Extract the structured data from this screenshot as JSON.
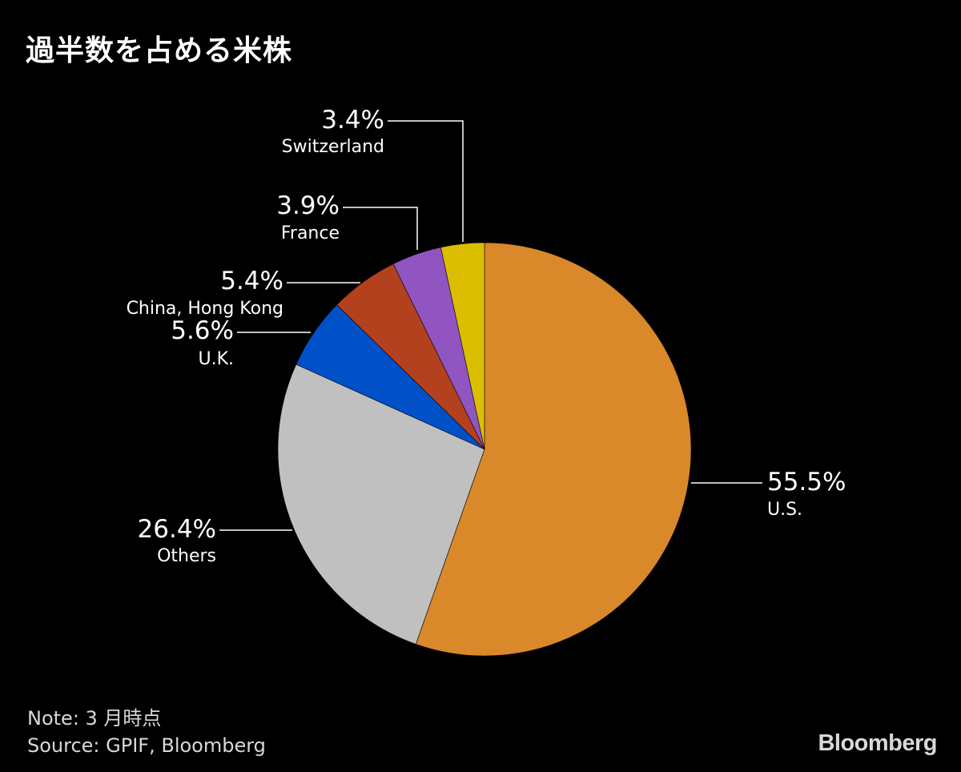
{
  "title": "過半数を占める米株",
  "chart_data": {
    "type": "pie",
    "title": "過半数を占める米株",
    "slices": [
      {
        "label": "U.S.",
        "value": 55.5,
        "value_label": "55.5%",
        "color": "#d9882a"
      },
      {
        "label": "Others",
        "value": 26.4,
        "value_label": "26.4%",
        "color": "#c0c0c0"
      },
      {
        "label": "U.K.",
        "value": 5.6,
        "value_label": "5.6%",
        "color": "#0050c8"
      },
      {
        "label": "China, Hong Kong",
        "value": 5.4,
        "value_label": "5.4%",
        "color": "#b4411e"
      },
      {
        "label": "France",
        "value": 3.9,
        "value_label": "3.9%",
        "color": "#9055c0"
      },
      {
        "label": "Switzerland",
        "value": 3.4,
        "value_label": "3.4%",
        "color": "#dcbe00"
      }
    ]
  },
  "footer": {
    "note": "Note:  3 月時点",
    "source": "Source: GPIF, Bloomberg"
  },
  "brand": "Bloomberg"
}
